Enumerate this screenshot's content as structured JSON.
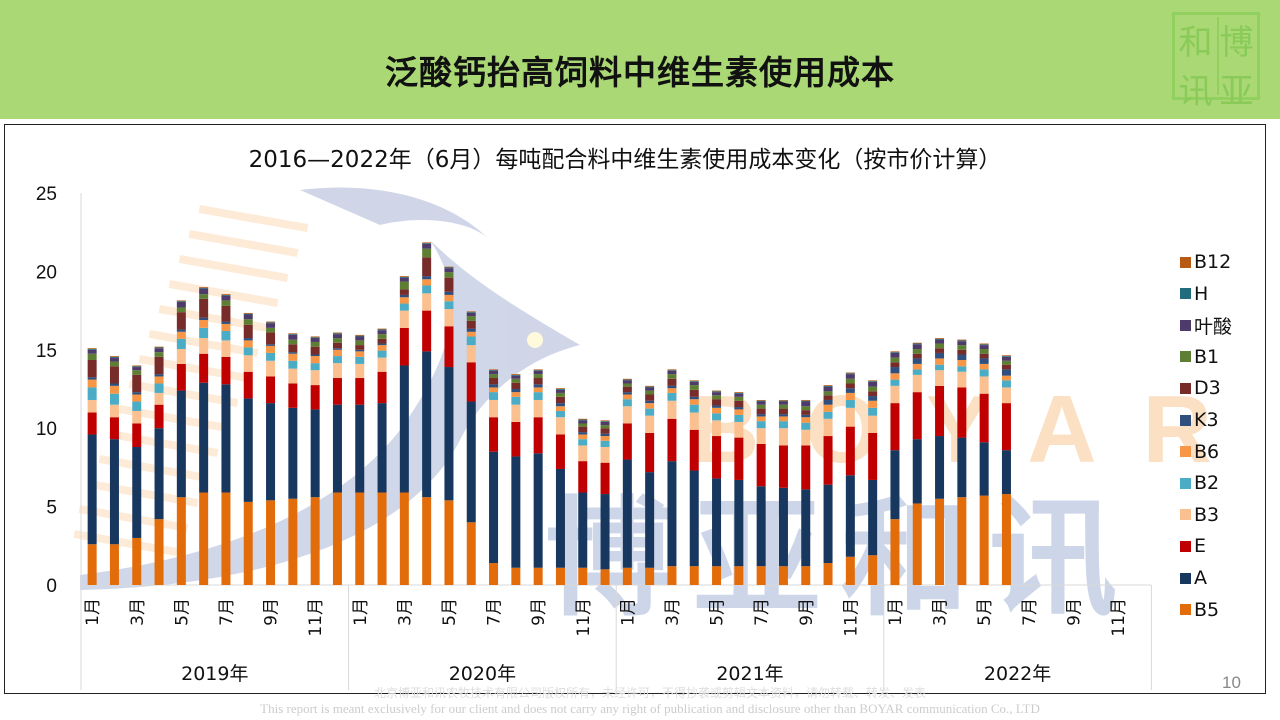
{
  "header": {
    "title": "泛酸钙抬高饲料中维生素使用成本",
    "seal_chars": [
      "和",
      "博",
      "讯",
      "亚"
    ]
  },
  "watermark": {
    "brand_en": "BOYAR",
    "brand_cn": "博亚和讯"
  },
  "page_number": "10",
  "footer": {
    "cn": "北京博亚和讯农牧技术有限公司版权所有，未经许可，不得抄袭或剪辑文本资料，请勿转载、转发、发表",
    "en": "This report is meant exclusively for our client and does not carry any right of publication and disclosure other than BOYAR communication Co., LTD"
  },
  "chart_data": {
    "type": "bar",
    "stacked": true,
    "title": "2016—2022年（6月）每吨配合料中维生素使用成本变化（按市价计算）",
    "xlabel": "",
    "ylabel": "",
    "ylim": [
      0,
      25
    ],
    "yticks": [
      0,
      5,
      10,
      15,
      20,
      25
    ],
    "grid": false,
    "legend_position": "right",
    "years": [
      "2019年",
      "2020年",
      "2021年",
      "2022年"
    ],
    "month_tick_labels": [
      "1月",
      "3月",
      "5月",
      "7月",
      "9月",
      "11月"
    ],
    "categories": [
      "2019-01",
      "2019-02",
      "2019-03",
      "2019-04",
      "2019-05",
      "2019-06",
      "2019-07",
      "2019-08",
      "2019-09",
      "2019-10",
      "2019-11",
      "2019-12",
      "2020-01",
      "2020-02",
      "2020-03",
      "2020-04",
      "2020-05",
      "2020-06",
      "2020-07",
      "2020-08",
      "2020-09",
      "2020-10",
      "2020-11",
      "2020-12",
      "2021-01",
      "2021-02",
      "2021-03",
      "2021-04",
      "2021-05",
      "2021-06",
      "2021-07",
      "2021-08",
      "2021-09",
      "2021-10",
      "2021-11",
      "2021-12",
      "2022-01",
      "2022-02",
      "2022-03",
      "2022-04",
      "2022-05",
      "2022-06",
      "2022-07",
      "2022-08",
      "2022-09",
      "2022-10",
      "2022-11",
      "2022-12"
    ],
    "series": [
      {
        "name": "B5",
        "color": "#e36c0a",
        "values": [
          2.6,
          2.6,
          3.0,
          4.2,
          5.6,
          5.9,
          5.9,
          5.3,
          5.4,
          5.5,
          5.6,
          5.9,
          5.9,
          5.9,
          5.9,
          5.6,
          5.4,
          4.0,
          1.4,
          1.1,
          1.1,
          1.1,
          1.1,
          1.0,
          1.1,
          1.1,
          1.2,
          1.2,
          1.2,
          1.2,
          1.2,
          1.2,
          1.2,
          1.4,
          1.8,
          1.9,
          4.2,
          5.2,
          5.5,
          5.6,
          5.7,
          5.8
        ]
      },
      {
        "name": "A",
        "color": "#17375e",
        "values": [
          7.0,
          6.7,
          5.8,
          5.8,
          6.8,
          7.0,
          6.9,
          6.6,
          6.2,
          5.8,
          5.6,
          5.6,
          5.6,
          5.7,
          8.1,
          9.3,
          8.5,
          7.7,
          7.1,
          7.1,
          7.3,
          6.3,
          4.8,
          4.8,
          6.9,
          6.1,
          6.7,
          6.1,
          5.6,
          5.5,
          5.1,
          5.0,
          4.9,
          5.0,
          5.2,
          4.8,
          4.4,
          4.1,
          4.0,
          3.8,
          3.4,
          2.8
        ]
      },
      {
        "name": "E",
        "color": "#c00000",
        "values": [
          1.4,
          1.4,
          1.5,
          1.5,
          1.7,
          1.85,
          1.75,
          1.7,
          1.7,
          1.55,
          1.55,
          1.7,
          1.7,
          2.0,
          2.4,
          2.6,
          2.6,
          2.5,
          2.2,
          2.2,
          2.3,
          2.2,
          2.0,
          2.0,
          2.3,
          2.5,
          2.7,
          2.6,
          2.7,
          2.7,
          2.7,
          2.7,
          2.8,
          3.1,
          3.1,
          3.0,
          3.0,
          3.0,
          3.2,
          3.2,
          3.1,
          3.0
        ]
      },
      {
        "name": "B3",
        "color": "#fac090",
        "values": [
          0.8,
          0.8,
          0.8,
          0.75,
          0.95,
          1.0,
          1.05,
          1.05,
          1.0,
          0.95,
          0.95,
          0.95,
          0.9,
          0.9,
          1.1,
          1.1,
          1.1,
          1.1,
          1.1,
          1.1,
          1.1,
          1.1,
          1.0,
          1.0,
          1.1,
          1.1,
          1.15,
          1.1,
          1.0,
          1.0,
          1.0,
          1.1,
          1.0,
          1.1,
          1.2,
          1.1,
          1.1,
          1.1,
          1.0,
          1.0,
          1.1,
          1.0
        ]
      },
      {
        "name": "B2",
        "color": "#4bacc6",
        "values": [
          0.8,
          0.7,
          0.6,
          0.6,
          0.65,
          0.65,
          0.6,
          0.5,
          0.5,
          0.5,
          0.45,
          0.45,
          0.45,
          0.45,
          0.45,
          0.5,
          0.5,
          0.55,
          0.5,
          0.5,
          0.5,
          0.4,
          0.4,
          0.4,
          0.45,
          0.45,
          0.5,
          0.5,
          0.45,
          0.45,
          0.45,
          0.45,
          0.45,
          0.45,
          0.5,
          0.5,
          0.4,
          0.35,
          0.35,
          0.35,
          0.45,
          0.45
        ]
      },
      {
        "name": "B6",
        "color": "#f79646",
        "values": [
          0.5,
          0.5,
          0.45,
          0.45,
          0.45,
          0.5,
          0.45,
          0.45,
          0.45,
          0.45,
          0.45,
          0.4,
          0.35,
          0.35,
          0.4,
          0.4,
          0.4,
          0.3,
          0.3,
          0.3,
          0.3,
          0.3,
          0.3,
          0.3,
          0.3,
          0.35,
          0.3,
          0.35,
          0.35,
          0.35,
          0.3,
          0.3,
          0.35,
          0.45,
          0.45,
          0.45,
          0.4,
          0.35,
          0.4,
          0.4,
          0.35,
          0.3
        ]
      },
      {
        "name": "K3",
        "color": "#2f4f7f",
        "values": [
          0.15,
          0.15,
          0.15,
          0.15,
          0.15,
          0.15,
          0.15,
          0.15,
          0.1,
          0.1,
          0.1,
          0.1,
          0.1,
          0.1,
          0.15,
          0.2,
          0.2,
          0.2,
          0.2,
          0.2,
          0.2,
          0.2,
          0.15,
          0.15,
          0.15,
          0.15,
          0.15,
          0.15,
          0.15,
          0.15,
          0.15,
          0.15,
          0.15,
          0.3,
          0.3,
          0.3,
          0.4,
          0.35,
          0.35,
          0.35,
          0.35,
          0.4
        ]
      },
      {
        "name": "D3",
        "color": "#772c2a",
        "values": [
          1.1,
          1.1,
          1.1,
          1.1,
          1.1,
          1.2,
          1.0,
          0.85,
          0.75,
          0.5,
          0.5,
          0.35,
          0.3,
          0.3,
          0.35,
          1.2,
          0.9,
          0.5,
          0.4,
          0.4,
          0.4,
          0.4,
          0.35,
          0.35,
          0.35,
          0.4,
          0.45,
          0.45,
          0.4,
          0.4,
          0.35,
          0.35,
          0.3,
          0.3,
          0.3,
          0.3,
          0.3,
          0.3,
          0.3,
          0.3,
          0.3,
          0.3
        ]
      },
      {
        "name": "B1",
        "color": "#5e7f33",
        "values": [
          0.4,
          0.3,
          0.3,
          0.3,
          0.3,
          0.3,
          0.35,
          0.35,
          0.3,
          0.3,
          0.3,
          0.3,
          0.3,
          0.3,
          0.5,
          0.55,
          0.35,
          0.3,
          0.25,
          0.25,
          0.25,
          0.25,
          0.2,
          0.2,
          0.2,
          0.25,
          0.3,
          0.3,
          0.25,
          0.25,
          0.25,
          0.25,
          0.25,
          0.25,
          0.3,
          0.3,
          0.3,
          0.3,
          0.3,
          0.3,
          0.3,
          0.25
        ]
      },
      {
        "name": "叶酸",
        "color": "#4f3b6b",
        "values": [
          0.25,
          0.25,
          0.2,
          0.25,
          0.35,
          0.35,
          0.3,
          0.3,
          0.3,
          0.3,
          0.25,
          0.25,
          0.25,
          0.25,
          0.25,
          0.3,
          0.25,
          0.2,
          0.2,
          0.2,
          0.2,
          0.2,
          0.2,
          0.2,
          0.2,
          0.2,
          0.2,
          0.2,
          0.2,
          0.2,
          0.2,
          0.2,
          0.3,
          0.3,
          0.3,
          0.3,
          0.3,
          0.3,
          0.25,
          0.25,
          0.25,
          0.25
        ]
      },
      {
        "name": "H",
        "color": "#226c7d",
        "values": [
          0.05,
          0.05,
          0.05,
          0.05,
          0.05,
          0.05,
          0.05,
          0.05,
          0.05,
          0.05,
          0.05,
          0.05,
          0.05,
          0.05,
          0.05,
          0.05,
          0.05,
          0.05,
          0.05,
          0.05,
          0.05,
          0.05,
          0.05,
          0.05,
          0.05,
          0.05,
          0.05,
          0.05,
          0.05,
          0.05,
          0.05,
          0.05,
          0.05,
          0.05,
          0.05,
          0.05,
          0.05,
          0.05,
          0.05,
          0.05,
          0.05,
          0.05
        ]
      },
      {
        "name": "B12",
        "color": "#b75a14",
        "values": [
          0.05,
          0.05,
          0.05,
          0.05,
          0.05,
          0.05,
          0.05,
          0.05,
          0.05,
          0.05,
          0.05,
          0.05,
          0.05,
          0.05,
          0.05,
          0.05,
          0.05,
          0.05,
          0.05,
          0.05,
          0.05,
          0.05,
          0.05,
          0.05,
          0.05,
          0.05,
          0.05,
          0.05,
          0.05,
          0.05,
          0.05,
          0.05,
          0.05,
          0.05,
          0.05,
          0.05,
          0.05,
          0.05,
          0.05,
          0.05,
          0.05,
          0.05
        ]
      }
    ],
    "legend_order": [
      "B12",
      "H",
      "叶酸",
      "B1",
      "D3",
      "K3",
      "B6",
      "B2",
      "B3",
      "E",
      "A",
      "B5"
    ]
  }
}
